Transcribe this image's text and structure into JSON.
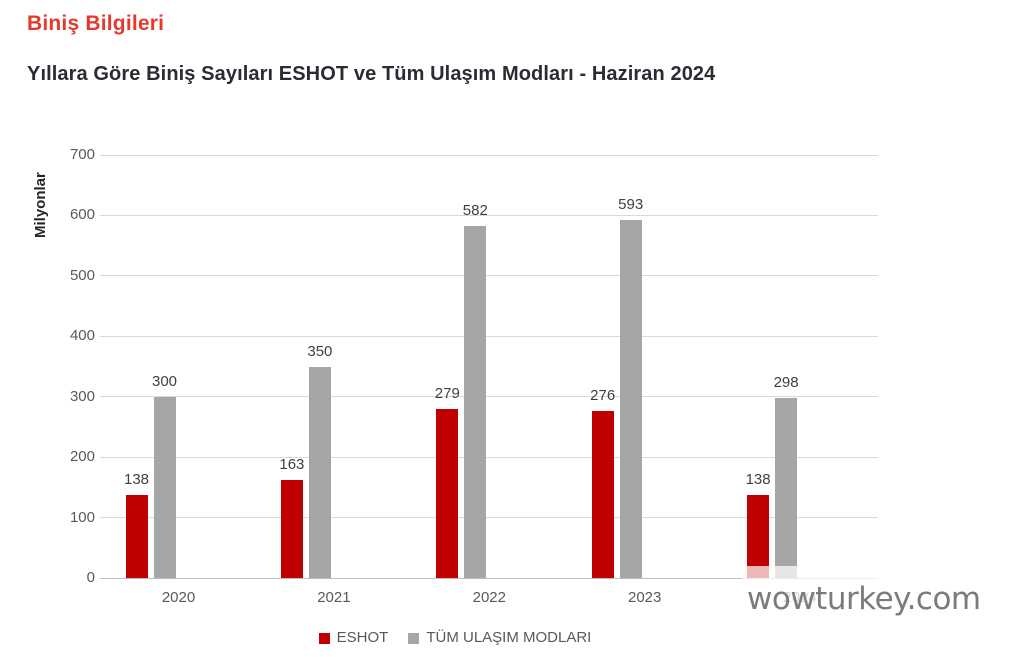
{
  "page": {
    "title": "Biniş Bilgileri",
    "subtitle": "Yıllara Göre Biniş Sayıları ESHOT ve Tüm Ulaşım Modları - Haziran 2024"
  },
  "watermark": {
    "text": "wowturkey.com"
  },
  "colors": {
    "title_red": "#e6392e",
    "subtitle_dark": "#2b2b33",
    "eshot_red": "#c00000",
    "modes_gray": "#a6a6a6",
    "gridline": "#d9d9d9",
    "axis_line": "#bfbfbf",
    "tick_text": "#595959",
    "value_text": "#404040",
    "watermark_text": "#7b7b7b"
  },
  "chart_data": {
    "type": "bar",
    "title": "Yıllara Göre Biniş Sayıları ESHOT ve Tüm Ulaşım Modları - Haziran 2024",
    "xlabel": "",
    "ylabel": "Milyonlar",
    "categories": [
      "2020",
      "2021",
      "2022",
      "2023",
      "2024"
    ],
    "series": [
      {
        "name": "ESHOT",
        "color": "#c00000",
        "values": [
          138,
          163,
          279,
          276,
          138
        ]
      },
      {
        "name": "TÜM ULAŞIM MODLARI",
        "color": "#a6a6a6",
        "values": [
          300,
          350,
          582,
          593,
          298
        ]
      }
    ],
    "ylim": [
      0,
      700
    ],
    "yticks": [
      0,
      100,
      200,
      300,
      400,
      500,
      600,
      700
    ],
    "grid": true,
    "legend_position": "bottom",
    "data_labels": true
  }
}
